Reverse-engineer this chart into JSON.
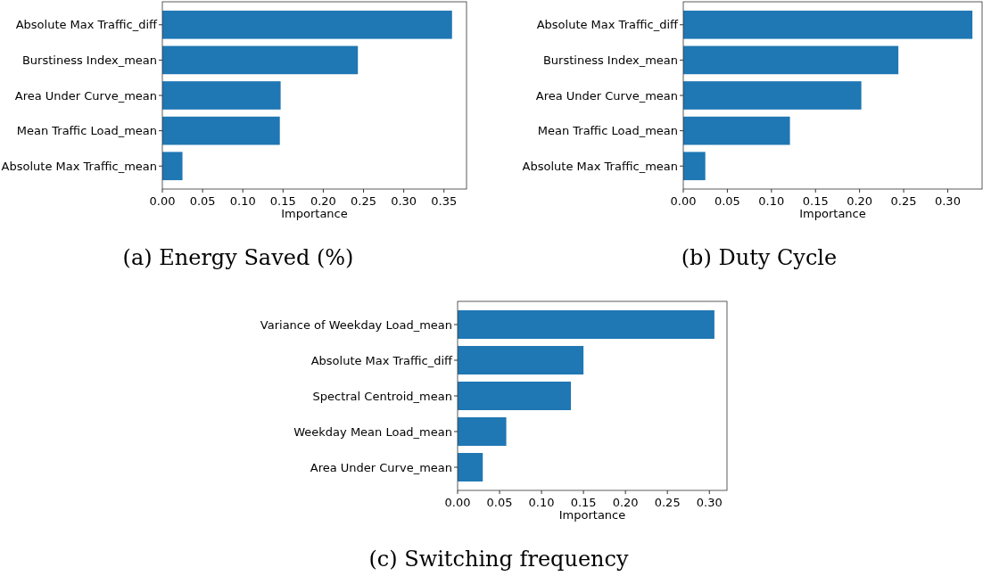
{
  "chart_data": [
    {
      "type": "bar",
      "orientation": "horizontal",
      "title": "(a) Energy Saved (%)",
      "xlabel": "Importance",
      "categories": [
        "Absolute Max Traffic_diff",
        "Burstiness Index_mean",
        "Area Under Curve_mean",
        "Mean Traffic Load_mean",
        "Absolute Max Traffic_mean"
      ],
      "values": [
        0.36,
        0.243,
        0.147,
        0.146,
        0.025
      ],
      "color": "#1f77b4",
      "xlim": [
        0,
        0.378
      ],
      "xticks": [
        {
          "value": 0,
          "label": "0.00"
        },
        0.05,
        {
          "value": 0.1,
          "label": "0.10"
        },
        0.15,
        {
          "value": 0.2,
          "label": "0.20"
        },
        0.25,
        {
          "value": 0.3,
          "label": "0.30"
        },
        0.35
      ],
      "grid": false
    },
    {
      "type": "bar",
      "orientation": "horizontal",
      "title": "(b) Duty Cycle",
      "xlabel": "Importance",
      "categories": [
        "Absolute Max Traffic_diff",
        "Burstiness Index_mean",
        "Area Under Curve_mean",
        "Mean Traffic Load_mean",
        "Absolute Max Traffic_mean"
      ],
      "values": [
        0.328,
        0.244,
        0.202,
        0.121,
        0.025
      ],
      "color": "#1f77b4",
      "xlim": [
        0,
        0.339
      ],
      "xticks": [
        {
          "value": 0,
          "label": "0.00"
        },
        0.05,
        {
          "value": 0.1,
          "label": "0.10"
        },
        0.15,
        {
          "value": 0.2,
          "label": "0.20"
        },
        0.25,
        {
          "value": 0.3,
          "label": "0.30"
        }
      ],
      "grid": false
    },
    {
      "type": "bar",
      "orientation": "horizontal",
      "title": "(c) Switching frequency",
      "xlabel": "Importance",
      "categories": [
        "Variance of Weekday Load_mean",
        "Absolute Max Traffic_diff",
        "Spectral Centroid_mean",
        "Weekday Mean Load_mean",
        "Area Under Curve_mean"
      ],
      "values": [
        0.306,
        0.15,
        0.135,
        0.058,
        0.03
      ],
      "color": "#1f77b4",
      "xlim": [
        0,
        0.321
      ],
      "xticks": [
        {
          "value": 0,
          "label": "0.00"
        },
        0.05,
        {
          "value": 0.1,
          "label": "0.10"
        },
        0.15,
        {
          "value": 0.2,
          "label": "0.20"
        },
        0.25,
        {
          "value": 0.3,
          "label": "0.30"
        }
      ],
      "grid": false
    }
  ]
}
